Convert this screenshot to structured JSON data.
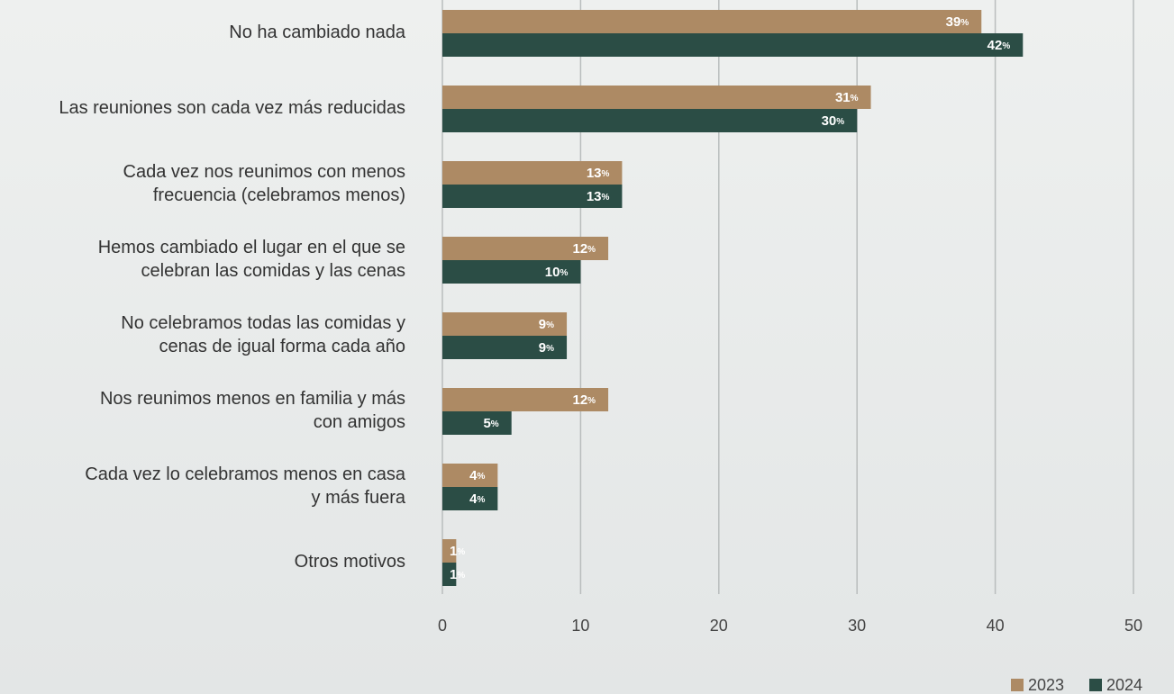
{
  "chart_data": {
    "type": "bar",
    "orientation": "horizontal",
    "categories": [
      "No ha cambiado nada",
      "Las reuniones son cada vez más reducidas",
      "Cada vez nos reunimos con menos\nfrecuencia (celebramos menos)",
      "Hemos cambiado el lugar en el que se\ncelebran las comidas y las cenas",
      "No celebramos todas las comidas y\ncenas de igual forma cada año",
      "Nos reunimos menos en familia y más\ncon amigos",
      "Cada vez lo celebramos menos en casa\ny más fuera",
      "Otros motivos"
    ],
    "series": [
      {
        "name": "2023",
        "color": "#ad8a64",
        "values": [
          39,
          31,
          13,
          12,
          9,
          12,
          4,
          1
        ],
        "value_labels": [
          "39%",
          "31%",
          "13%",
          "12%",
          "9%",
          "12%",
          "4%",
          "1%"
        ]
      },
      {
        "name": "2024",
        "color": "#2b4d45",
        "values": [
          42,
          30,
          13,
          10,
          9,
          5,
          4,
          1
        ],
        "value_labels": [
          "42%",
          "30%",
          "13%",
          "10%",
          "9%",
          "5%",
          "4%",
          "1%"
        ]
      }
    ],
    "xlim": [
      0,
      50
    ],
    "xticks": [
      0,
      10,
      20,
      30,
      40,
      50
    ],
    "grid": true,
    "legend": "bottom-right"
  }
}
